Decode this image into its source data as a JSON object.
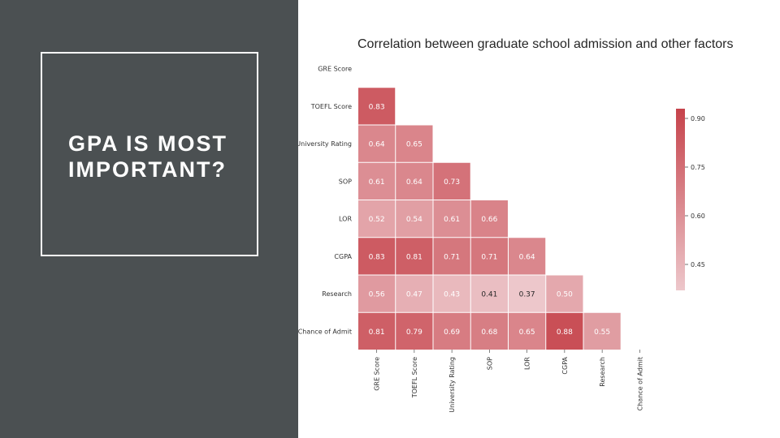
{
  "slide": {
    "title": "GPA IS MOST IMPORTANT?"
  },
  "colors": {
    "panel": "#4b5052",
    "high": "#c6434b",
    "low": "#edc7cb"
  },
  "chart_data": {
    "type": "heatmap",
    "title": "Correlation between graduate school admission and other factors",
    "variables": [
      "GRE Score",
      "TOEFL Score",
      "University Rating",
      "SOP",
      "LOR",
      "CGPA",
      "Research",
      "Chance of Admit"
    ],
    "mask": "upper-triangle",
    "matrix": [
      [
        null,
        null,
        null,
        null,
        null,
        null,
        null,
        null
      ],
      [
        0.83,
        null,
        null,
        null,
        null,
        null,
        null,
        null
      ],
      [
        0.64,
        0.65,
        null,
        null,
        null,
        null,
        null,
        null
      ],
      [
        0.61,
        0.64,
        0.73,
        null,
        null,
        null,
        null,
        null
      ],
      [
        0.52,
        0.54,
        0.61,
        0.66,
        null,
        null,
        null,
        null
      ],
      [
        0.83,
        0.81,
        0.71,
        0.71,
        0.64,
        null,
        null,
        null
      ],
      [
        0.56,
        0.47,
        0.43,
        0.41,
        0.37,
        0.5,
        null,
        null
      ],
      [
        0.81,
        0.79,
        0.69,
        0.68,
        0.65,
        0.88,
        0.55,
        null
      ]
    ],
    "labels": [
      [
        "",
        "",
        "",
        "",
        "",
        "",
        "",
        ""
      ],
      [
        "0.83",
        "",
        "",
        "",
        "",
        "",
        "",
        ""
      ],
      [
        "0.64",
        "0.65",
        "",
        "",
        "",
        "",
        "",
        ""
      ],
      [
        "0.61",
        "0.64",
        "0.73",
        "",
        "",
        "",
        "",
        ""
      ],
      [
        "0.52",
        "0.54",
        "0.61",
        "0.66",
        "",
        "",
        "",
        ""
      ],
      [
        "0.83",
        "0.81",
        "0.71",
        "0.71",
        "0.64",
        "",
        "",
        ""
      ],
      [
        "0.56",
        "0.47",
        "0.43",
        "0.41",
        "0.37",
        "0.50",
        "",
        ""
      ],
      [
        "0.81",
        "0.79",
        "0.69",
        "0.68",
        "0.65",
        "0.88",
        "0.55",
        ""
      ]
    ],
    "colorbar": {
      "range": [
        0.37,
        0.93
      ],
      "ticks": [
        0.45,
        0.6,
        0.75,
        0.9
      ],
      "tick_labels": [
        "0.45",
        "0.60",
        "0.75",
        "0.90"
      ]
    },
    "grid": false,
    "legend": "right"
  }
}
